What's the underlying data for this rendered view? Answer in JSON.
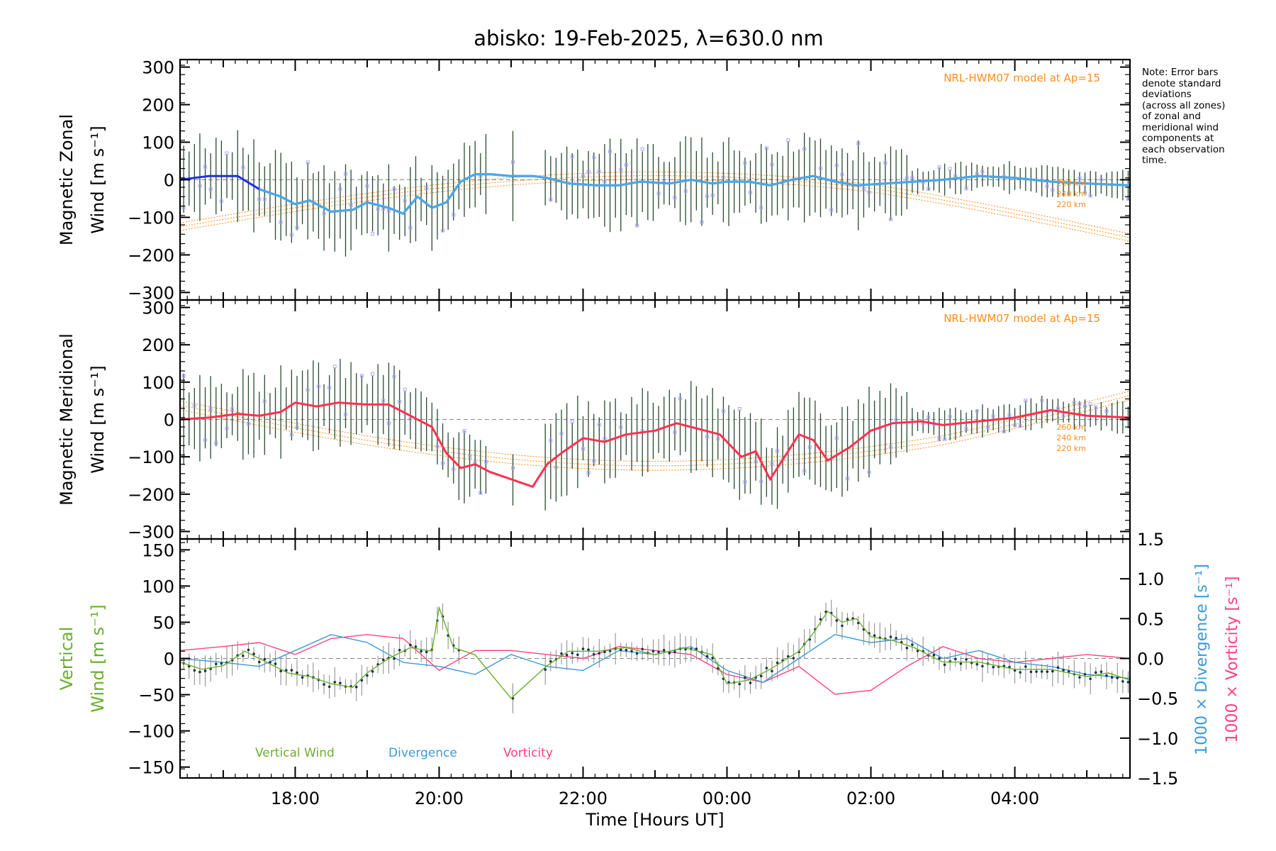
{
  "title": "abisko: 19-Feb-2025, λ=630.0 nm",
  "note_lines": [
    "Note: Error bars",
    "denote standard",
    "deviations",
    "(across all zones)",
    "of zonal and",
    "meridional wind",
    "components at",
    "each observation",
    "time."
  ],
  "colors": {
    "zonal": "#2030e0",
    "zonal_mean": "#4aa8e8",
    "meridional": "#ff3050",
    "vertical": "#6ab02a",
    "divergence": "#3a9ad8",
    "vorticity": "#ff4080",
    "model": "#ff8c1a",
    "error_bars": "#2a4a30",
    "scatter": "#a8a8ff"
  },
  "chart_data": [
    {
      "type": "line",
      "panel": "zonal",
      "ylabel_line1": "Magnetic Zonal",
      "ylabel_line2": "Wind [m s⁻¹]",
      "ylim": [
        -320,
        320
      ],
      "yticks": [
        300,
        200,
        100,
        0,
        -100,
        -200,
        -300
      ],
      "xlim": [
        16.4,
        29.6
      ],
      "model_label": "NRL-HWM07 model at Ap=15",
      "model_heights": [
        "260 km",
        "240 km",
        "220 km"
      ],
      "series": [
        {
          "name": "zonal wind",
          "x": [
            16.4,
            16.8,
            17.2,
            17.5,
            17.8,
            18.0,
            18.2,
            18.5,
            18.8,
            19.0,
            19.3,
            19.5,
            19.7,
            19.9,
            20.1,
            20.3,
            20.5,
            20.7,
            21.0,
            21.3,
            21.5,
            21.8,
            22.2,
            22.5,
            22.8,
            23.2,
            23.5,
            23.8,
            24.0,
            24.3,
            24.6,
            24.9,
            25.2,
            25.5,
            25.8,
            26.2,
            26.6,
            27.0,
            27.5,
            28.0,
            28.5,
            29.0,
            29.6
          ],
          "y": [
            0,
            10,
            10,
            -25,
            -45,
            -65,
            -55,
            -85,
            -80,
            -60,
            -75,
            -90,
            -45,
            -75,
            -60,
            -5,
            15,
            15,
            10,
            10,
            5,
            -10,
            -15,
            -15,
            -5,
            -10,
            0,
            -10,
            -5,
            -5,
            -15,
            0,
            10,
            -5,
            -15,
            -10,
            -5,
            0,
            10,
            5,
            -5,
            -10,
            -15
          ]
        }
      ]
    },
    {
      "type": "line",
      "panel": "meridional",
      "ylabel_line1": "Magnetic Meridional",
      "ylabel_line2": "Wind [m s⁻¹]",
      "ylim": [
        -320,
        320
      ],
      "yticks": [
        300,
        200,
        100,
        0,
        -100,
        -200,
        -300
      ],
      "xlim": [
        16.4,
        29.6
      ],
      "model_label": "NRL-HWM07 model at Ap=15",
      "model_heights": [
        "260 km",
        "240 km",
        "220 km"
      ],
      "series": [
        {
          "name": "meridional wind",
          "x": [
            16.4,
            16.8,
            17.2,
            17.5,
            17.8,
            18.0,
            18.3,
            18.6,
            19.0,
            19.3,
            19.6,
            19.9,
            20.1,
            20.3,
            20.5,
            20.7,
            21.0,
            21.3,
            21.5,
            21.7,
            22.0,
            22.3,
            22.6,
            23.0,
            23.3,
            23.6,
            23.9,
            24.2,
            24.4,
            24.6,
            24.8,
            25.0,
            25.2,
            25.4,
            25.7,
            26.0,
            26.3,
            26.7,
            27.0,
            27.5,
            28.0,
            28.5,
            29.0,
            29.6
          ],
          "y": [
            0,
            5,
            15,
            10,
            20,
            45,
            35,
            45,
            40,
            40,
            10,
            -20,
            -90,
            -130,
            -120,
            -140,
            -160,
            -180,
            -120,
            -90,
            -50,
            -60,
            -40,
            -30,
            -10,
            -25,
            -40,
            -100,
            -85,
            -160,
            -100,
            -40,
            -55,
            -110,
            -75,
            -30,
            -10,
            -5,
            -15,
            -5,
            5,
            25,
            10,
            5
          ]
        }
      ]
    },
    {
      "type": "line",
      "panel": "vertical",
      "ylabel_line1": "Vertical",
      "ylabel_line2": "Wind [m s⁻¹]",
      "right_label_1": "1000 × Divergence [s⁻¹]",
      "right_label_2": "1000 × Vorticity [s⁻¹]",
      "ylim": [
        -165,
        165
      ],
      "yticks": [
        150,
        100,
        50,
        0,
        -50,
        -100,
        -150
      ],
      "y2lim": [
        -1.5,
        1.5
      ],
      "y2ticks": [
        "1.5",
        "1.0",
        "0.5",
        "0.0",
        "−0.5",
        "−1.0",
        "−1.5"
      ],
      "y2tick_values": [
        1.5,
        1.0,
        0.5,
        0.0,
        -0.5,
        -1.0,
        -1.5
      ],
      "xlim": [
        16.4,
        29.6
      ],
      "xtick_values": [
        18,
        20,
        22,
        24,
        26,
        28
      ],
      "xtick_labels": [
        "18:00",
        "20:00",
        "22:00",
        "00:00",
        "02:00",
        "04:00"
      ],
      "xlabel": "Time [Hours UT]",
      "legend": [
        "Vertical Wind",
        "Divergence",
        "Vorticity"
      ],
      "series": [
        {
          "name": "Vertical Wind",
          "x": [
            16.4,
            16.7,
            17.0,
            17.3,
            17.6,
            17.9,
            18.2,
            18.5,
            18.8,
            19.0,
            19.3,
            19.6,
            19.9,
            20.0,
            20.2,
            20.5,
            21.0,
            21.5,
            21.8,
            22.2,
            22.6,
            23.0,
            23.4,
            23.8,
            24.0,
            24.3,
            24.6,
            25.0,
            25.2,
            25.4,
            25.6,
            25.8,
            26.0,
            26.3,
            26.6,
            27.0,
            27.5,
            28.0,
            28.5,
            29.0,
            29.3,
            29.6
          ],
          "y": [
            -5,
            -15,
            -10,
            10,
            -5,
            -20,
            -25,
            -35,
            -40,
            -20,
            0,
            15,
            10,
            70,
            15,
            5,
            -55,
            -10,
            10,
            10,
            15,
            5,
            15,
            5,
            -35,
            -30,
            -15,
            10,
            35,
            65,
            50,
            55,
            30,
            25,
            15,
            -5,
            -5,
            -15,
            -15,
            -25,
            -20,
            -30
          ]
        },
        {
          "name": "Divergence",
          "x": [
            16.4,
            17.0,
            17.5,
            18.0,
            18.5,
            19.0,
            19.5,
            20.0,
            20.5,
            21.0,
            21.5,
            22.0,
            22.5,
            23.0,
            23.5,
            24.0,
            24.5,
            25.0,
            25.5,
            26.0,
            26.5,
            27.0,
            27.5,
            28.0,
            28.5,
            29.0,
            29.6
          ],
          "y": [
            0.0,
            -0.05,
            -0.1,
            0.1,
            0.3,
            0.2,
            -0.05,
            -0.1,
            -0.2,
            0.05,
            -0.1,
            -0.15,
            0.1,
            0.05,
            0.15,
            -0.15,
            -0.3,
            0.0,
            0.3,
            0.2,
            0.25,
            0.0,
            0.1,
            -0.05,
            -0.1,
            -0.2,
            -0.25
          ]
        },
        {
          "name": "Vorticity",
          "x": [
            16.4,
            17.0,
            17.5,
            18.0,
            18.5,
            19.0,
            19.5,
            20.0,
            20.5,
            21.0,
            21.5,
            22.0,
            22.5,
            23.0,
            23.5,
            24.0,
            24.5,
            25.0,
            25.5,
            26.0,
            26.5,
            27.0,
            27.5,
            28.0,
            28.5,
            29.0,
            29.6
          ],
          "y": [
            0.1,
            0.15,
            0.2,
            0.05,
            0.25,
            0.3,
            0.25,
            -0.15,
            0.1,
            0.1,
            0.05,
            0.0,
            0.15,
            0.1,
            0.05,
            -0.2,
            -0.3,
            -0.1,
            -0.45,
            -0.4,
            -0.1,
            0.15,
            0.0,
            -0.05,
            0.0,
            0.05,
            0.0
          ]
        }
      ]
    }
  ]
}
